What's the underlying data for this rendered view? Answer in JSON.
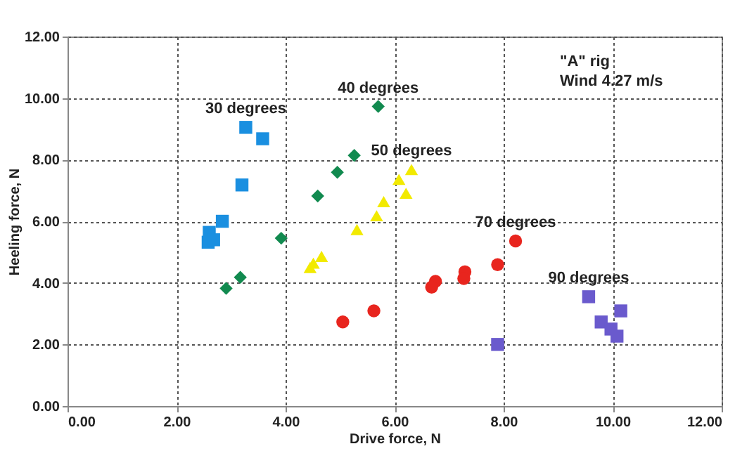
{
  "chart_data": {
    "type": "scatter",
    "xlabel": "Drive force, N",
    "ylabel": "Heeling force, N",
    "xlim": [
      0,
      12
    ],
    "ylim": [
      0,
      12
    ],
    "xticks": [
      {
        "value": 0,
        "label": "0.00"
      },
      {
        "value": 2,
        "label": "2.00"
      },
      {
        "value": 4,
        "label": "4.00"
      },
      {
        "value": 6,
        "label": "6.00"
      },
      {
        "value": 8,
        "label": "8.00"
      },
      {
        "value": 10,
        "label": "10.00"
      },
      {
        "value": 12,
        "label": "12.00"
      }
    ],
    "yticks": [
      {
        "value": 0,
        "label": "0.00"
      },
      {
        "value": 2,
        "label": "2.00"
      },
      {
        "value": 4,
        "label": "4.00"
      },
      {
        "value": 6,
        "label": "6.00"
      },
      {
        "value": 8,
        "label": "8.00"
      },
      {
        "value": 10,
        "label": "10.00"
      },
      {
        "value": 12,
        "label": "12.00"
      }
    ],
    "grid": true,
    "legend": false,
    "annotations": [
      "\"A\" rig",
      "Wind 4.27 m/s"
    ],
    "series": [
      {
        "name": "30 degrees",
        "color": "#1a8fe0",
        "marker": "square",
        "x": [
          3.27,
          3.58,
          3.2,
          2.84,
          2.6,
          2.58,
          2.68
        ],
        "values": [
          9.05,
          8.68,
          7.18,
          6.0,
          5.64,
          5.32,
          5.4
        ]
      },
      {
        "name": "40 degrees",
        "color": "#118a4f",
        "marker": "diamond",
        "x": [
          5.7,
          5.26,
          4.95,
          4.59,
          3.92,
          3.17,
          2.91
        ],
        "values": [
          9.73,
          8.14,
          7.59,
          6.82,
          5.45,
          4.18,
          3.82
        ]
      },
      {
        "name": "50 degrees",
        "color": "#f2ea00",
        "marker": "triangle",
        "x": [
          6.31,
          6.08,
          6.21,
          5.8,
          5.67,
          5.31,
          4.66,
          4.51,
          4.45
        ],
        "values": [
          7.68,
          7.36,
          6.91,
          6.64,
          6.18,
          5.73,
          4.86,
          4.64,
          4.5
        ]
      },
      {
        "name": "70 degrees",
        "color": "#e8251e",
        "marker": "circle",
        "x": [
          8.22,
          7.89,
          7.29,
          7.27,
          6.75,
          6.68,
          5.62,
          5.05
        ],
        "values": [
          5.36,
          4.59,
          4.36,
          4.14,
          4.05,
          3.86,
          3.09,
          2.73
        ]
      },
      {
        "name": "90 degrees",
        "color": "#6a5acd",
        "marker": "square",
        "x": [
          7.89,
          9.56,
          10.15,
          9.79,
          9.97,
          10.08
        ],
        "values": [
          2.0,
          3.55,
          3.09,
          2.73,
          2.5,
          2.27
        ]
      }
    ]
  }
}
